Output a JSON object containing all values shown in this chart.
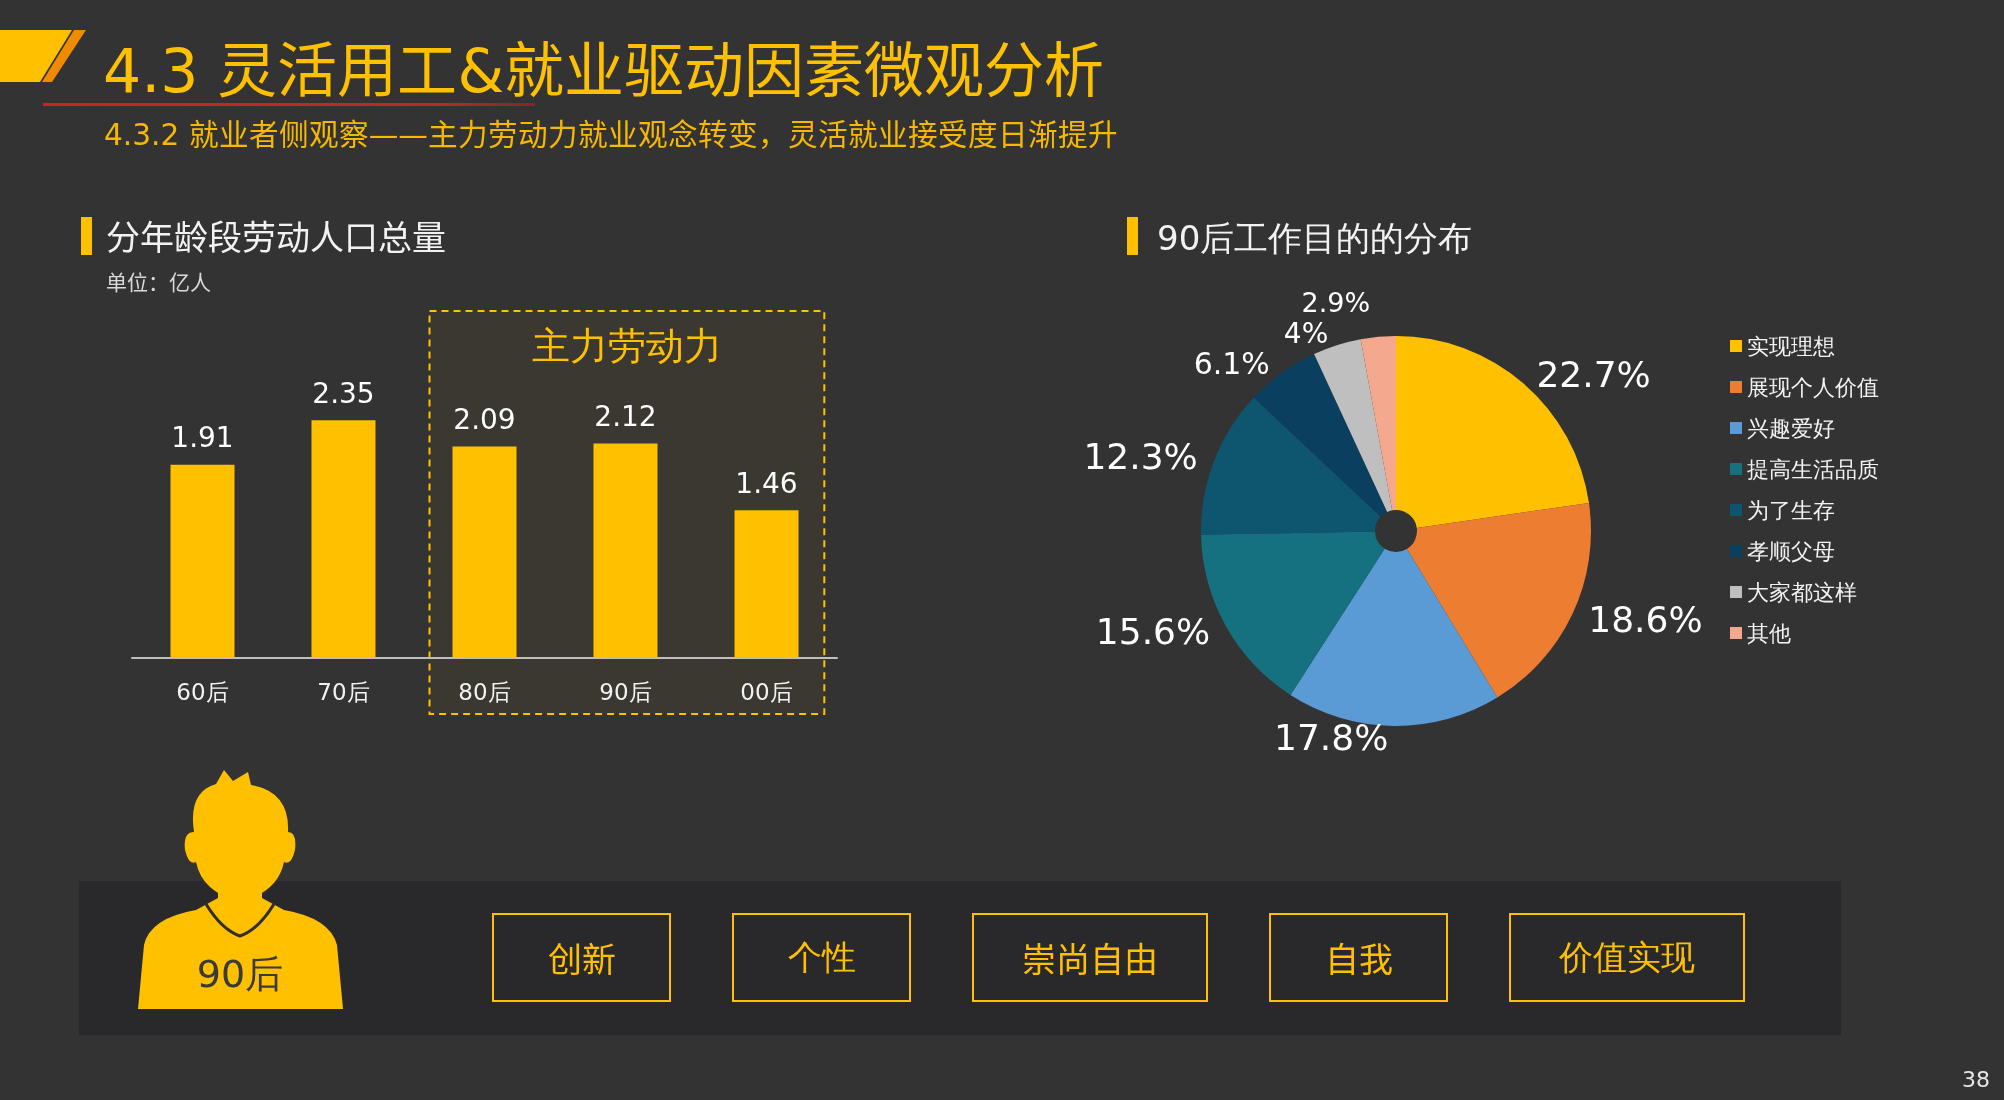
{
  "chart_data": [
    {
      "type": "other",
      "title": "4.3 灵活用工&就业驱动因素微观分析",
      "subtitle": "4.3.2 就业者侧观察——主力劳动力就业观念转变，灵活就业接受度日渐提升",
      "annotations": [
        "38"
      ]
    },
    {
      "type": "bar",
      "title": "分年龄段劳动人口总量",
      "subtitle": "单位：亿人",
      "categories": [
        "60后",
        "70后",
        "80后",
        "90后",
        "00后"
      ],
      "values": [
        1.91,
        2.35,
        2.09,
        2.12,
        1.46
      ],
      "color": "#ffc000",
      "data_labels": true,
      "bands": [
        {
          "axis": "x",
          "from": "80后",
          "to": "00后",
          "label": "主力劳动力",
          "color": "#ffc000"
        }
      ]
    },
    {
      "type": "pie",
      "title": "90后工作目的的分布",
      "categories": [
        "实现理想",
        "展现个人价值",
        "兴趣爱好",
        "提高生活品质",
        "为了生存",
        "孝顺父母",
        "大家都这样",
        "其他"
      ],
      "values": [
        22.7,
        18.6,
        17.8,
        15.6,
        12.3,
        6.1,
        4,
        2.9
      ],
      "colors": [
        "#ffc000",
        "#ed7d31",
        "#5b9bd5",
        "#15717f",
        "#0e5570",
        "#0b3f60",
        "#bfbfbf",
        "#f4a98f"
      ],
      "value_labels": [
        "22.7%",
        "18.6%",
        "17.8%",
        "15.6%",
        "12.3%",
        "6.1%",
        "4%",
        "2.9%"
      ],
      "legend": "right"
    },
    {
      "type": "other",
      "title": "90后",
      "annotations": [
        "创新",
        "个性",
        "崇尚自由",
        "自我",
        "价值实现"
      ]
    }
  ]
}
